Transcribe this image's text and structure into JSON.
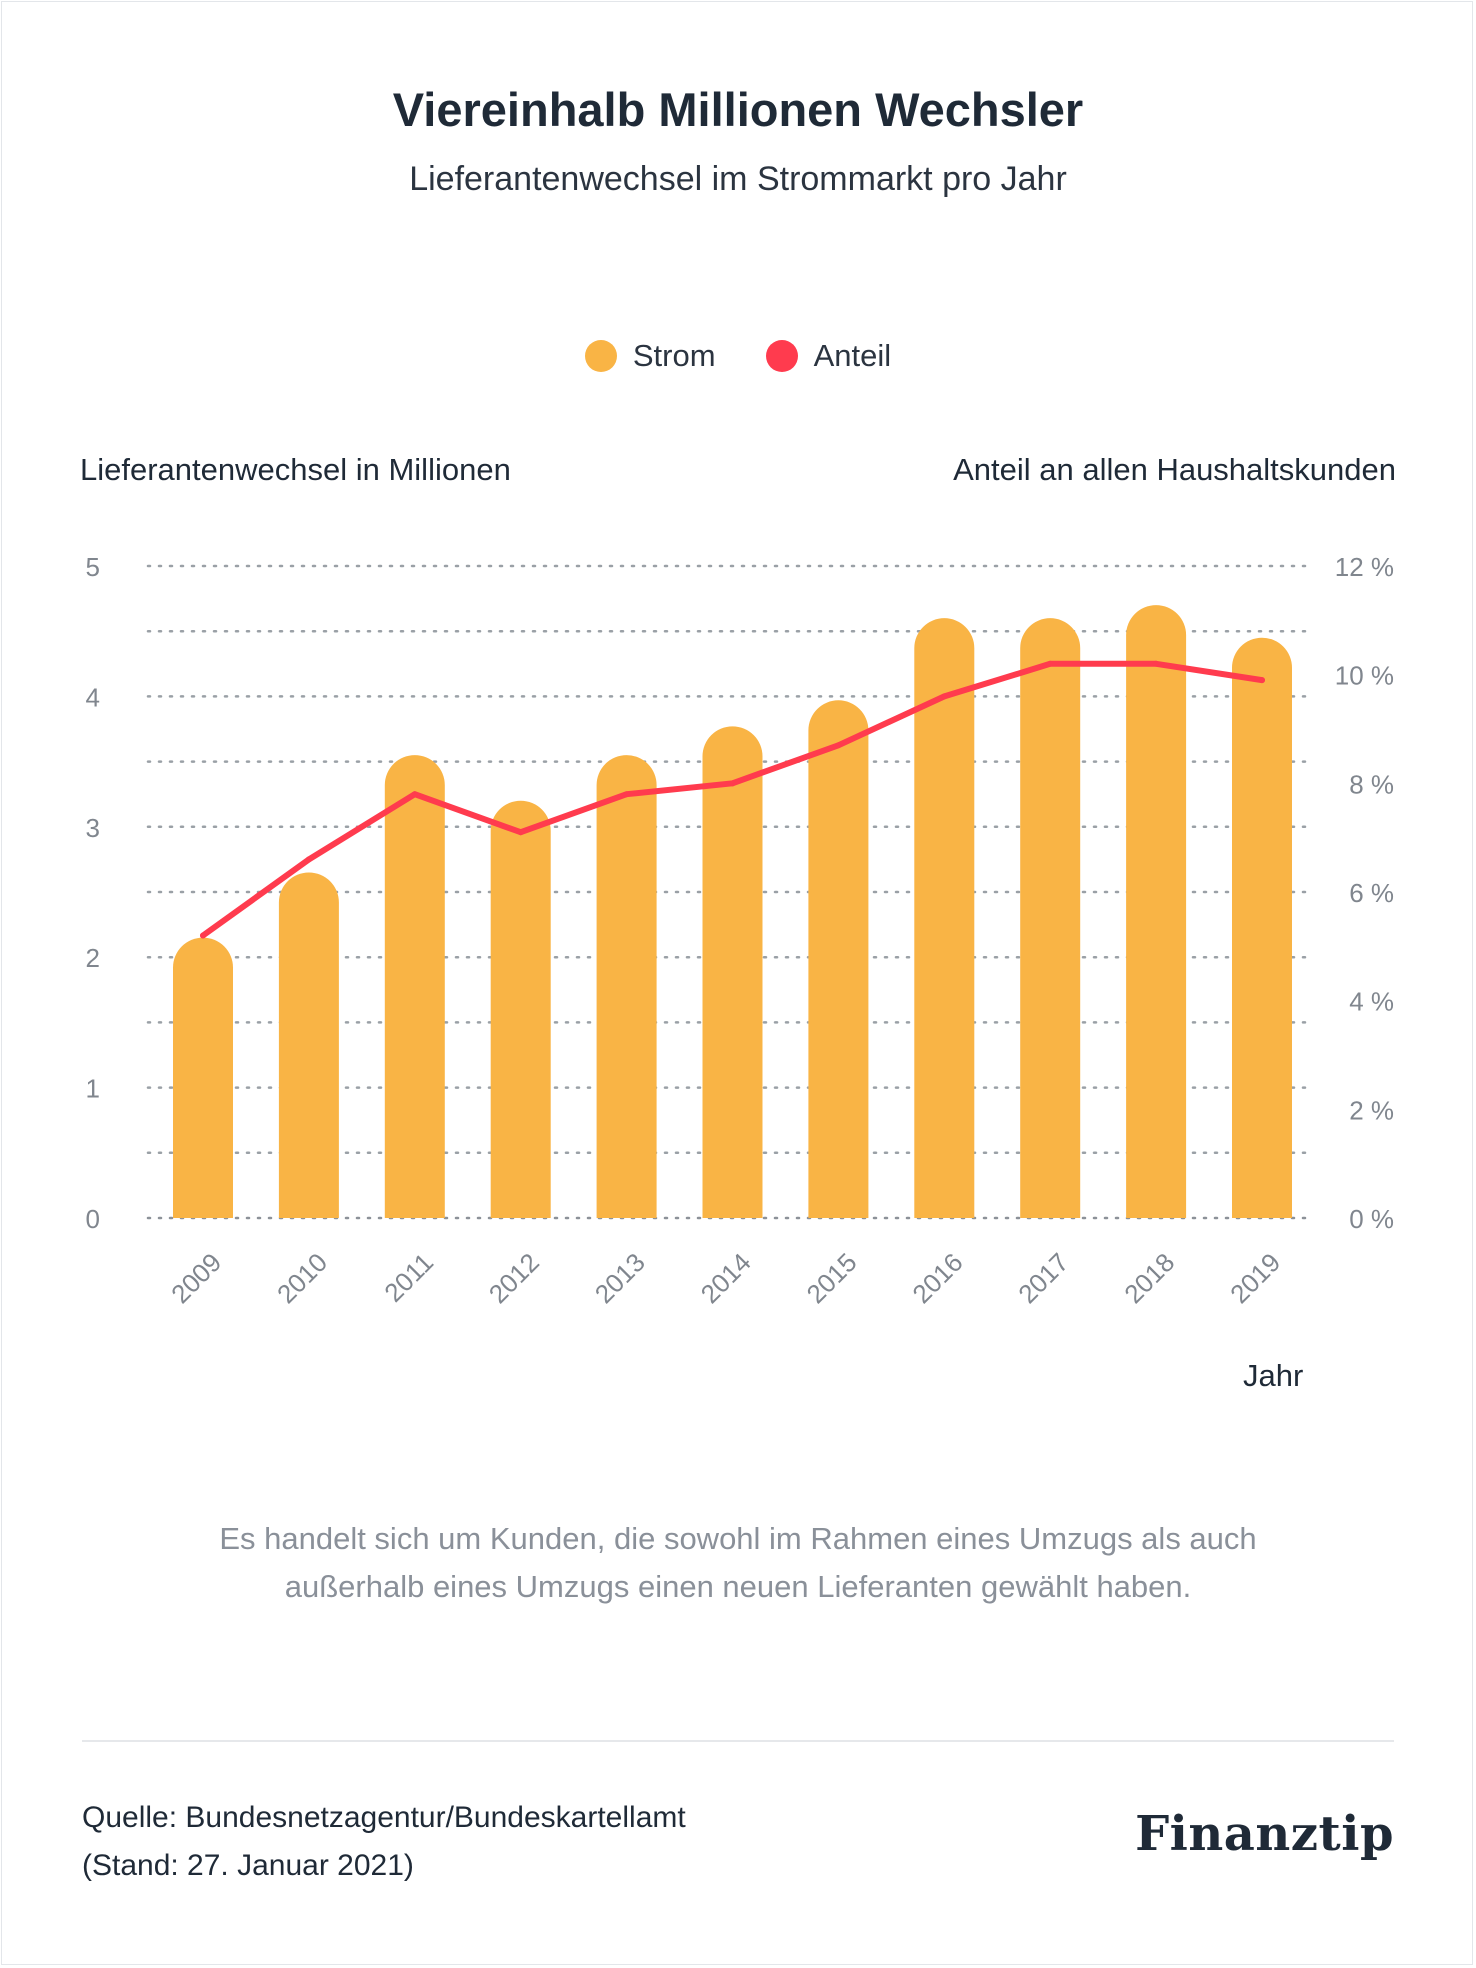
{
  "header": {
    "title": "Viereinhalb Millionen Wechsler",
    "subtitle": "Lieferantenwechsel im Strommarkt pro Jahr"
  },
  "legend": [
    {
      "label": "Strom",
      "color": "#F9B445"
    },
    {
      "label": "Anteil",
      "color": "#FF3B4E"
    }
  ],
  "chart_data": {
    "type": "bar",
    "ylabel": "Lieferantenwechsel in Millionen",
    "y2label": "Anteil an allen Haushaltskunden",
    "xlabel": "Jahr",
    "categories": [
      "2009",
      "2010",
      "2011",
      "2012",
      "2013",
      "2014",
      "2015",
      "2016",
      "2017",
      "2018",
      "2019"
    ],
    "ylim": [
      0,
      5
    ],
    "y2lim": [
      0,
      12
    ],
    "y_ticks": [
      "0",
      "1",
      "2",
      "3",
      "4",
      "5"
    ],
    "y2_ticks": [
      "0 %",
      "2 %",
      "4 %",
      "6 %",
      "8 %",
      "10 %",
      "12 %"
    ],
    "grid": true,
    "legend_position": "top-center",
    "series": [
      {
        "name": "Strom",
        "type": "bar",
        "axis": "left",
        "color": "#F9B445",
        "values": [
          2.15,
          2.65,
          3.55,
          3.2,
          3.55,
          3.77,
          3.97,
          4.6,
          4.6,
          4.7,
          4.45
        ]
      },
      {
        "name": "Anteil",
        "type": "line",
        "axis": "right",
        "color": "#FF3B4E",
        "values": [
          5.2,
          6.6,
          7.8,
          7.1,
          7.8,
          8.0,
          8.7,
          9.6,
          10.2,
          10.2,
          9.9
        ]
      }
    ]
  },
  "note": {
    "line1": "Es handelt sich um Kunden, die sowohl im Rahmen eines Umzugs als auch",
    "line2": "außerhalb eines Umzugs einen neuen Lieferanten gewählt haben."
  },
  "footer": {
    "source_line1": "Quelle: Bundesnetzagentur/Bundeskartellamt",
    "source_line2": "(Stand: 27. Januar 2021)",
    "logo": "Finanztip"
  }
}
